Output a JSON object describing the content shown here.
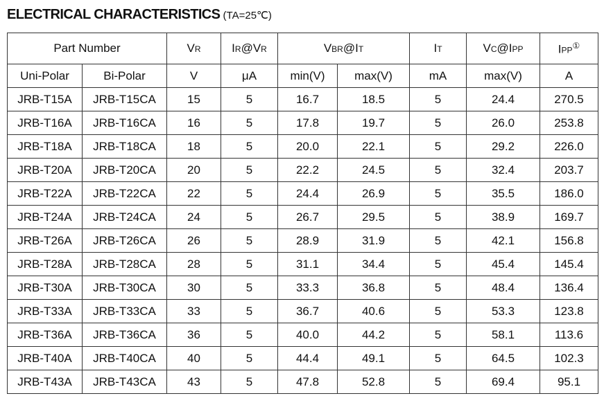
{
  "title": {
    "parts": [
      {
        "text": "ELECTRICAL CHARACTERISTICS"
      },
      {
        "text": " (T"
      },
      {
        "text": "A",
        "sub": true
      },
      {
        "text": "=25℃)"
      }
    ]
  },
  "table": {
    "header_row1": [
      {
        "parts": [
          {
            "text": "Part Number"
          }
        ]
      },
      {
        "parts": [
          {
            "text": "V"
          },
          {
            "text": "R",
            "sub": true
          }
        ]
      },
      {
        "parts": [
          {
            "text": "I"
          },
          {
            "text": "R",
            "sub": true
          },
          {
            "text": "@V"
          },
          {
            "text": "R",
            "sub": true
          }
        ]
      },
      {
        "parts": [
          {
            "text": "V"
          },
          {
            "text": "BR",
            "sub": true
          },
          {
            "text": "@I"
          },
          {
            "text": "T",
            "sub": true
          }
        ]
      },
      {
        "parts": [
          {
            "text": "I"
          },
          {
            "text": "T",
            "sub": true
          }
        ]
      },
      {
        "parts": [
          {
            "text": "V"
          },
          {
            "text": "C",
            "sub": true
          },
          {
            "text": "@I"
          },
          {
            "text": "PP",
            "sub": true
          }
        ]
      },
      {
        "parts": [
          {
            "text": "I"
          },
          {
            "text": "PP",
            "sub": true
          },
          {
            "text": "①",
            "sup": true
          }
        ]
      }
    ],
    "header_row2": [
      "Uni-Polar",
      "Bi-Polar",
      "V",
      "μA",
      "min(V)",
      "max(V)",
      "mA",
      "max(V)",
      "A"
    ],
    "rows": [
      [
        "JRB-T15A",
        "JRB-T15CA",
        "15",
        "5",
        "16.7",
        "18.5",
        "5",
        "24.4",
        "270.5"
      ],
      [
        "JRB-T16A",
        "JRB-T16CA",
        "16",
        "5",
        "17.8",
        "19.7",
        "5",
        "26.0",
        "253.8"
      ],
      [
        "JRB-T18A",
        "JRB-T18CA",
        "18",
        "5",
        "20.0",
        "22.1",
        "5",
        "29.2",
        "226.0"
      ],
      [
        "JRB-T20A",
        "JRB-T20CA",
        "20",
        "5",
        "22.2",
        "24.5",
        "5",
        "32.4",
        "203.7"
      ],
      [
        "JRB-T22A",
        "JRB-T22CA",
        "22",
        "5",
        "24.4",
        "26.9",
        "5",
        "35.5",
        "186.0"
      ],
      [
        "JRB-T24A",
        "JRB-T24CA",
        "24",
        "5",
        "26.7",
        "29.5",
        "5",
        "38.9",
        "169.7"
      ],
      [
        "JRB-T26A",
        "JRB-T26CA",
        "26",
        "5",
        "28.9",
        "31.9",
        "5",
        "42.1",
        "156.8"
      ],
      [
        "JRB-T28A",
        "JRB-T28CA",
        "28",
        "5",
        "31.1",
        "34.4",
        "5",
        "45.4",
        "145.4"
      ],
      [
        "JRB-T30A",
        "JRB-T30CA",
        "30",
        "5",
        "33.3",
        "36.8",
        "5",
        "48.4",
        "136.4"
      ],
      [
        "JRB-T33A",
        "JRB-T33CA",
        "33",
        "5",
        "36.7",
        "40.6",
        "5",
        "53.3",
        "123.8"
      ],
      [
        "JRB-T36A",
        "JRB-T36CA",
        "36",
        "5",
        "40.0",
        "44.2",
        "5",
        "58.1",
        "113.6"
      ],
      [
        "JRB-T40A",
        "JRB-T40CA",
        "40",
        "5",
        "44.4",
        "49.1",
        "5",
        "64.5",
        "102.3"
      ],
      [
        "JRB-T43A",
        "JRB-T43CA",
        "43",
        "5",
        "47.8",
        "52.8",
        "5",
        "69.4",
        "95.1"
      ]
    ]
  }
}
